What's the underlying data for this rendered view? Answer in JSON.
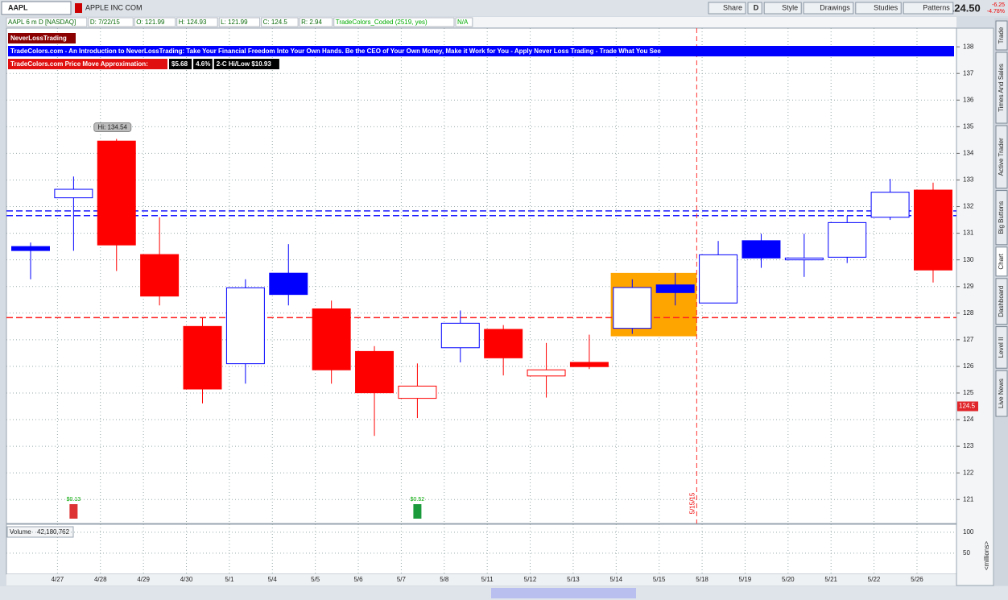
{
  "header": {
    "symbol": "AAPL",
    "company": "APPLE INC COM",
    "buttons": [
      "Share",
      "D",
      "Style",
      "Drawings",
      "Studies",
      "Patterns"
    ],
    "last": "124.50",
    "change": "-6.25",
    "change_pct": "-4.78%"
  },
  "info": [
    "AAPL 6 m D [NASDAQ]",
    "D: 7/22/15",
    "O: 121.99",
    "H: 124.93",
    "L: 121.99",
    "C: 124.5",
    "R: 2.94",
    "TradeColors_Coded (2519, yes)",
    "N/A"
  ],
  "studies": {
    "name": "NeverLossTrading",
    "banner": "TradeColors.com - An Introduction to NeverLossTrading: Take Your Financial Freedom Into Your Own Hands. Be the CEO of Your Own Money, Make it Work for You - Apply Never Loss Trading - Trade What You See",
    "approx_label": "TradeColors.com Price Move Approximation:",
    "approx_values": [
      "$5.68",
      "4.6%",
      "2-C Hi/Low $10.93"
    ]
  },
  "sidebar_tabs": [
    "Trade",
    "Times And Sales",
    "Active Trader",
    "Big Buttons",
    "Chart",
    "Dashboard",
    "Level II",
    "Live News"
  ],
  "chart_data": {
    "type": "candlestick",
    "categories": [
      null,
      "4/27",
      "4/28",
      "4/29",
      "4/30",
      "5/1",
      "5/4",
      "5/5",
      "5/6",
      "5/7",
      "5/8",
      "5/11",
      "5/12",
      "5/13",
      "5/14",
      "5/15",
      "5/18",
      "5/19",
      "5/20",
      "5/21",
      "5/22",
      "5/26"
    ],
    "open": [
      130.5,
      132.33,
      134.46,
      130.2,
      127.5,
      126.1,
      129.5,
      128.16,
      126.56,
      124.8,
      126.7,
      127.39,
      125.64,
      126.15,
      127.43,
      129.06,
      128.38,
      130.72,
      130.0,
      130.1,
      131.6,
      132.62
    ],
    "high": [
      130.65,
      133.13,
      134.54,
      131.6,
      127.83,
      129.27,
      130.59,
      128.47,
      126.76,
      126.11,
      128.1,
      127.55,
      126.88,
      127.19,
      129.27,
      129.51,
      130.71,
      130.98,
      130.98,
      131.66,
      133.04,
      132.9
    ],
    "low": [
      129.27,
      130.34,
      129.58,
      128.29,
      124.61,
      125.35,
      128.29,
      125.35,
      123.39,
      124.06,
      126.15,
      125.66,
      124.83,
      125.9,
      127.22,
      128.29,
      128.38,
      129.7,
      129.36,
      129.88,
      131.5,
      129.15
    ],
    "close": [
      130.35,
      132.65,
      130.56,
      128.64,
      125.15,
      128.95,
      128.7,
      125.87,
      125.01,
      125.26,
      127.62,
      126.32,
      125.87,
      125.99,
      128.96,
      128.77,
      130.19,
      130.07,
      130.07,
      131.4,
      132.54,
      129.62
    ],
    "colors": [
      "#0000ff",
      "#0000ff",
      "#ff0000",
      "#ff0000",
      "#ff0000",
      "#0000ff",
      "#0000ff",
      "#ff0000",
      "#ff0000",
      "#ff0000",
      "#0000ff",
      "#ff0000",
      "#ff0000",
      "#ff0000",
      "#0000ff",
      "#0000ff",
      "#0000ff",
      "#0000ff",
      "#0000ff",
      "#0000ff",
      "#0000ff",
      "#ff0000"
    ],
    "ylim": [
      120.1,
      138.7
    ],
    "yticks": [
      121,
      122,
      123,
      124,
      125,
      126,
      127,
      128,
      129,
      130,
      131,
      132,
      133,
      134,
      135,
      136,
      137,
      138
    ],
    "grid": true,
    "high_label": "Hi: 134.54",
    "hlines": [
      {
        "value": 131.84,
        "color": "#1a1aff"
      },
      {
        "value": 131.66,
        "color": "#1a1aff"
      },
      {
        "value": 127.83,
        "color": "#ff2020"
      }
    ],
    "vline": {
      "after": "5/15",
      "label": "5/15/15"
    },
    "highlight": {
      "from": "5/14",
      "to": "5/15",
      "low": 127.13,
      "high": 129.51,
      "color": "#ffa500"
    },
    "last_price": {
      "value": 124.5,
      "label": "124.5"
    },
    "dividends": [
      {
        "category": "4/27",
        "label": "$0.13"
      },
      {
        "category": "5/7",
        "label": "$0.52"
      }
    ],
    "volume": {
      "label": "Volume",
      "value_label": "42,180,762",
      "ylim": [
        0,
        115
      ],
      "yticks": [
        50,
        100
      ],
      "unit": "<millions>"
    }
  }
}
